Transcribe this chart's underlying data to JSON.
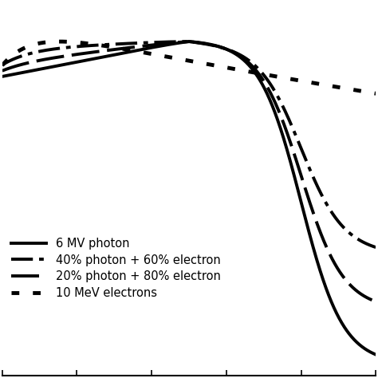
{
  "background_color": "#ffffff",
  "legend_labels": [
    "6 MV photon",
    "40% photon + 60% electron",
    "20% photon + 80% electron",
    "10 MeV electrons"
  ],
  "x_ticks_count": 5,
  "xlim": [
    0,
    5
  ],
  "ylim": [
    -0.02,
    1.12
  ]
}
